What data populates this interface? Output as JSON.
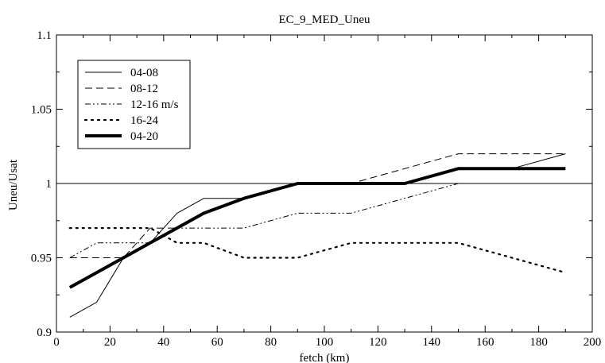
{
  "chart_data": {
    "type": "line",
    "title": "EC_9_MED_Uneu",
    "xlabel": "fetch (km)",
    "ylabel": "Uneu/Usat",
    "xlim": [
      0,
      200
    ],
    "ylim": [
      0.9,
      1.1
    ],
    "x_ticks": [
      "0",
      "20",
      "40",
      "60",
      "80",
      "100",
      "120",
      "140",
      "160",
      "180",
      "200"
    ],
    "y_ticks": [
      "0.9",
      "0.95",
      "1",
      "1.05",
      "1.1"
    ],
    "grid": false,
    "legend_position": "top-left",
    "reference_line": 1.0,
    "series": [
      {
        "name": "04-08",
        "style": "thin-solid",
        "points": [
          [
            5,
            0.91
          ],
          [
            15,
            0.92
          ],
          [
            25,
            0.95
          ],
          [
            35,
            0.96
          ],
          [
            45,
            0.98
          ],
          [
            55,
            0.99
          ],
          [
            70,
            0.99
          ],
          [
            90,
            1.0
          ],
          [
            110,
            1.0
          ],
          [
            130,
            1.0
          ],
          [
            150,
            1.01
          ],
          [
            170,
            1.01
          ],
          [
            190,
            1.02
          ]
        ]
      },
      {
        "name": "08-12",
        "style": "dashed",
        "points": [
          [
            5,
            0.95
          ],
          [
            15,
            0.95
          ],
          [
            25,
            0.95
          ],
          [
            35,
            0.97
          ],
          [
            45,
            0.97
          ],
          [
            55,
            0.98
          ],
          [
            70,
            0.99
          ],
          [
            90,
            1.0
          ],
          [
            110,
            1.0
          ],
          [
            130,
            1.01
          ],
          [
            150,
            1.02
          ],
          [
            170,
            1.02
          ],
          [
            190,
            1.02
          ]
        ]
      },
      {
        "name": "12-16 m/s",
        "style": "dash-dot",
        "points": [
          [
            5,
            0.95
          ],
          [
            15,
            0.96
          ],
          [
            25,
            0.96
          ],
          [
            35,
            0.96
          ],
          [
            45,
            0.97
          ],
          [
            55,
            0.97
          ],
          [
            70,
            0.97
          ],
          [
            90,
            0.98
          ],
          [
            110,
            0.98
          ],
          [
            130,
            0.99
          ],
          [
            150,
            1.0
          ]
        ]
      },
      {
        "name": "16-24",
        "style": "dotted",
        "points": [
          [
            5,
            0.97
          ],
          [
            15,
            0.97
          ],
          [
            25,
            0.97
          ],
          [
            35,
            0.97
          ],
          [
            45,
            0.96
          ],
          [
            55,
            0.96
          ],
          [
            70,
            0.95
          ],
          [
            90,
            0.95
          ],
          [
            110,
            0.96
          ],
          [
            130,
            0.96
          ],
          [
            150,
            0.96
          ],
          [
            170,
            0.95
          ],
          [
            190,
            0.94
          ]
        ]
      },
      {
        "name": "04-20",
        "style": "thick-solid",
        "points": [
          [
            5,
            0.93
          ],
          [
            15,
            0.94
          ],
          [
            25,
            0.95
          ],
          [
            35,
            0.96
          ],
          [
            45,
            0.97
          ],
          [
            55,
            0.98
          ],
          [
            70,
            0.99
          ],
          [
            90,
            1.0
          ],
          [
            110,
            1.0
          ],
          [
            130,
            1.0
          ],
          [
            150,
            1.01
          ],
          [
            170,
            1.01
          ],
          [
            190,
            1.01
          ]
        ]
      }
    ]
  }
}
